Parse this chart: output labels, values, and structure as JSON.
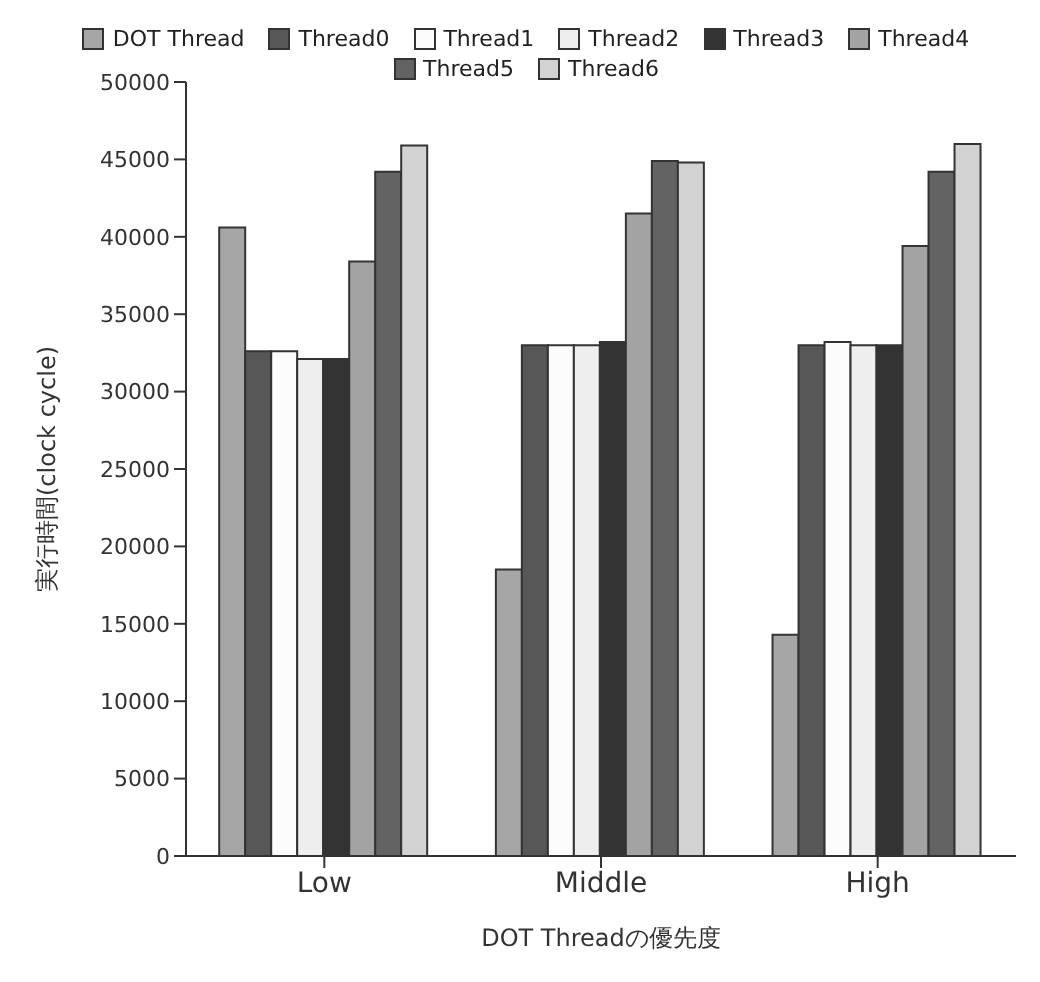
{
  "chart_data": {
    "type": "bar",
    "xlabel": "DOT Threadの優先度",
    "ylabel": "実行時間(clock cycle)",
    "categories": [
      "Low",
      "Middle",
      "High"
    ],
    "series": [
      {
        "name": "DOT Thread",
        "color": "#a6a6a6",
        "values": [
          40600,
          18500,
          14300
        ]
      },
      {
        "name": "Thread0",
        "color": "#575757",
        "values": [
          32600,
          33000,
          33000
        ]
      },
      {
        "name": "Thread1",
        "color": "#fcfcfc",
        "values": [
          32600,
          33000,
          33200
        ]
      },
      {
        "name": "Thread2",
        "color": "#eeeeee",
        "values": [
          32100,
          33000,
          33000
        ]
      },
      {
        "name": "Thread3",
        "color": "#333333",
        "values": [
          32100,
          33200,
          33000
        ]
      },
      {
        "name": "Thread4",
        "color": "#a3a3a3",
        "values": [
          38400,
          41500,
          39400
        ]
      },
      {
        "name": "Thread5",
        "color": "#636363",
        "values": [
          44200,
          44900,
          44200
        ]
      },
      {
        "name": "Thread6",
        "color": "#d2d2d2",
        "values": [
          45900,
          44800,
          46000
        ]
      }
    ],
    "ylim": [
      0,
      50000
    ],
    "yticks": [
      0,
      5000,
      10000,
      15000,
      20000,
      25000,
      30000,
      35000,
      40000,
      45000,
      50000
    ],
    "grid": false,
    "legend": "top"
  }
}
